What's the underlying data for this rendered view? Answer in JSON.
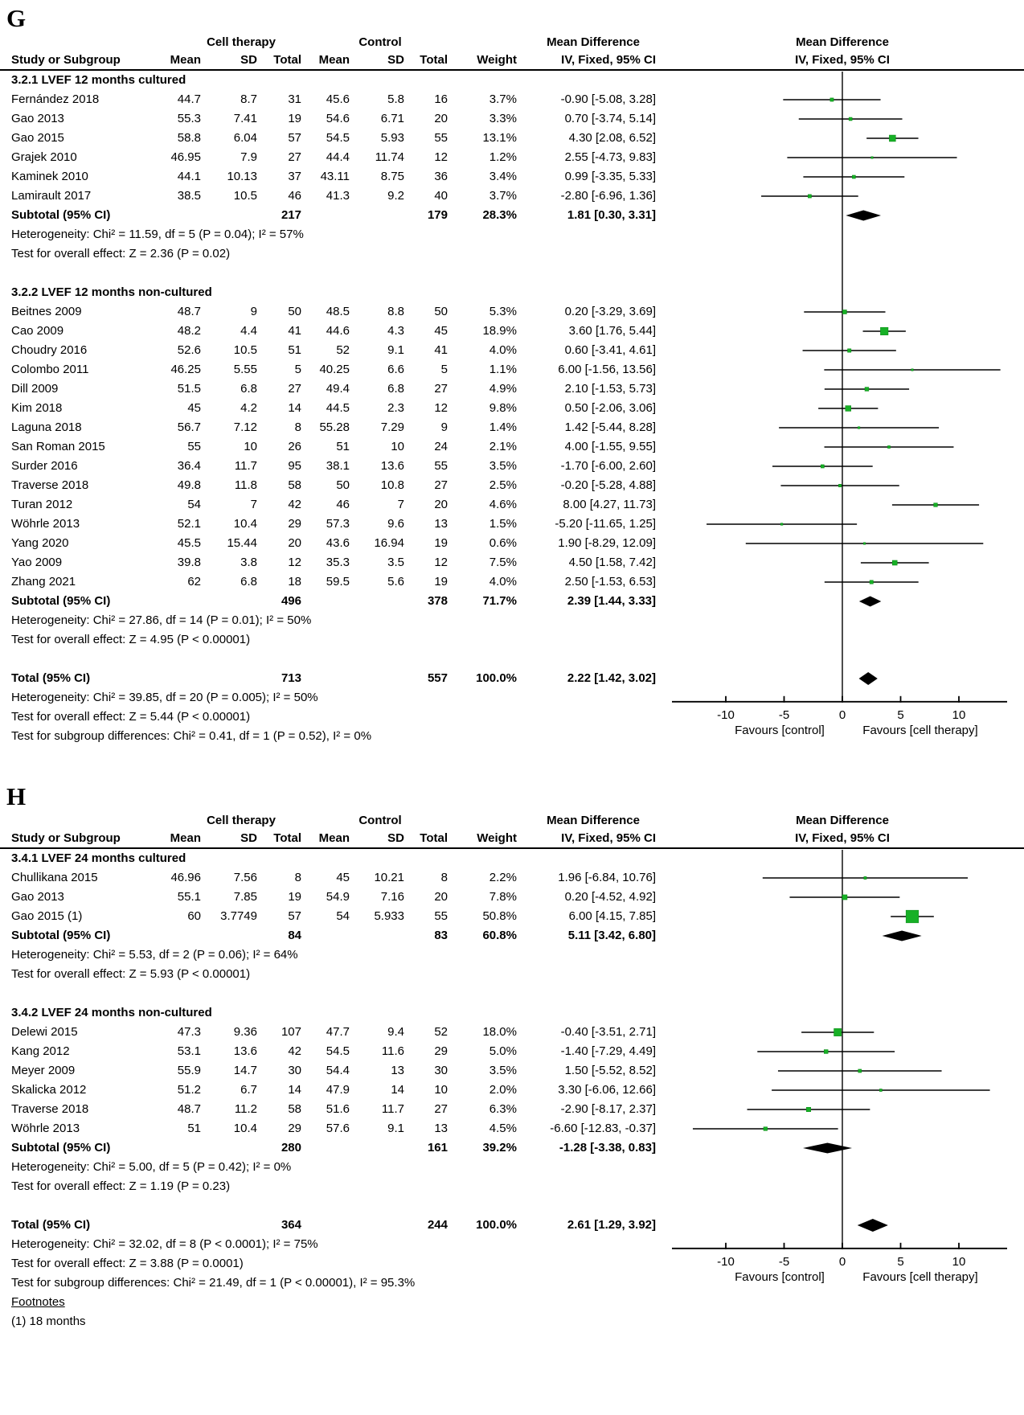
{
  "colors": {
    "marker_green": "#17B026",
    "marker_green_border": "#0B8A16",
    "diamond_black": "#000000",
    "zero_line_gray": "#4D4D4D",
    "axis_black": "#000000"
  },
  "header": {
    "group_cell": "Cell therapy",
    "group_control": "Control",
    "md": "Mean Difference",
    "study": "Study or Subgroup",
    "mean": "Mean",
    "sd": "SD",
    "total": "Total",
    "weight": "Weight",
    "iv": "IV, Fixed, 95% CI"
  },
  "axis": {
    "values": [
      -10,
      -5,
      0,
      5,
      10
    ],
    "tick_labels": [
      "-10",
      "-5",
      "0",
      "5",
      "10"
    ],
    "xmin": -14.6,
    "xmax": 14.1,
    "left_label": "Favours [control]",
    "right_label": "Favours [cell therapy]"
  },
  "chart_data": [
    {
      "type": "forest",
      "label": "G",
      "effect_measure": "Mean Difference, IV, Fixed, 95% CI",
      "rows": [
        {
          "t": "group",
          "label": "3.2.1 LVEF 12 months cultured"
        },
        {
          "t": "s",
          "name": "Fernández 2018",
          "c": [
            "44.7",
            "8.7",
            "31",
            "45.6",
            "5.8",
            "16",
            "3.7%",
            "-0.90 [-5.08, 3.28]"
          ],
          "md": -0.9,
          "lo": -5.08,
          "hi": 3.28,
          "wv": 3.7
        },
        {
          "t": "s",
          "name": "Gao 2013",
          "c": [
            "55.3",
            "7.41",
            "19",
            "54.6",
            "6.71",
            "20",
            "3.3%",
            "0.70 [-3.74, 5.14]"
          ],
          "md": 0.7,
          "lo": -3.74,
          "hi": 5.14,
          "wv": 3.3
        },
        {
          "t": "s",
          "name": "Gao 2015",
          "c": [
            "58.8",
            "6.04",
            "57",
            "54.5",
            "5.93",
            "55",
            "13.1%",
            "4.30 [2.08, 6.52]"
          ],
          "md": 4.3,
          "lo": 2.08,
          "hi": 6.52,
          "wv": 13.1
        },
        {
          "t": "s",
          "name": "Grajek 2010",
          "c": [
            "46.95",
            "7.9",
            "27",
            "44.4",
            "11.74",
            "12",
            "1.2%",
            "2.55 [-4.73, 9.83]"
          ],
          "md": 2.55,
          "lo": -4.73,
          "hi": 9.83,
          "wv": 1.2
        },
        {
          "t": "s",
          "name": "Kaminek 2010",
          "c": [
            "44.1",
            "10.13",
            "37",
            "43.11",
            "8.75",
            "36",
            "3.4%",
            "0.99 [-3.35, 5.33]"
          ],
          "md": 0.99,
          "lo": -3.35,
          "hi": 5.33,
          "wv": 3.4
        },
        {
          "t": "s",
          "name": "Lamirault 2017",
          "c": [
            "38.5",
            "10.5",
            "46",
            "41.3",
            "9.2",
            "40",
            "3.7%",
            "-2.80 [-6.96, 1.36]"
          ],
          "md": -2.8,
          "lo": -6.96,
          "hi": 1.36,
          "wv": 3.7
        },
        {
          "t": "sub",
          "name": "Subtotal (95% CI)",
          "c": [
            "",
            "",
            "217",
            "",
            "",
            "179",
            "28.3%",
            "1.81 [0.30, 3.31]"
          ],
          "md": 1.81,
          "lo": 0.3,
          "hi": 3.31
        },
        {
          "t": "txt",
          "text": "Heterogeneity: Chi² = 11.59, df = 5 (P = 0.04); I² = 57%"
        },
        {
          "t": "txt",
          "text": "Test for overall effect: Z = 2.36 (P = 0.02)"
        },
        {
          "t": "sp"
        },
        {
          "t": "group",
          "label": "3.2.2 LVEF 12 months non-cultured"
        },
        {
          "t": "s",
          "name": "Beitnes 2009",
          "c": [
            "48.7",
            "9",
            "50",
            "48.5",
            "8.8",
            "50",
            "5.3%",
            "0.20 [-3.29, 3.69]"
          ],
          "md": 0.2,
          "lo": -3.29,
          "hi": 3.69,
          "wv": 5.3
        },
        {
          "t": "s",
          "name": "Cao 2009",
          "c": [
            "48.2",
            "4.4",
            "41",
            "44.6",
            "4.3",
            "45",
            "18.9%",
            "3.60 [1.76, 5.44]"
          ],
          "md": 3.6,
          "lo": 1.76,
          "hi": 5.44,
          "wv": 18.9
        },
        {
          "t": "s",
          "name": "Choudry 2016",
          "c": [
            "52.6",
            "10.5",
            "51",
            "52",
            "9.1",
            "41",
            "4.0%",
            "0.60 [-3.41, 4.61]"
          ],
          "md": 0.6,
          "lo": -3.41,
          "hi": 4.61,
          "wv": 4.0
        },
        {
          "t": "s",
          "name": "Colombo 2011",
          "c": [
            "46.25",
            "5.55",
            "5",
            "40.25",
            "6.6",
            "5",
            "1.1%",
            "6.00 [-1.56, 13.56]"
          ],
          "md": 6.0,
          "lo": -1.56,
          "hi": 13.56,
          "wv": 1.1
        },
        {
          "t": "s",
          "name": "Dill 2009",
          "c": [
            "51.5",
            "6.8",
            "27",
            "49.4",
            "6.8",
            "27",
            "4.9%",
            "2.10 [-1.53, 5.73]"
          ],
          "md": 2.1,
          "lo": -1.53,
          "hi": 5.73,
          "wv": 4.9
        },
        {
          "t": "s",
          "name": "Kim 2018",
          "c": [
            "45",
            "4.2",
            "14",
            "44.5",
            "2.3",
            "12",
            "9.8%",
            "0.50 [-2.06, 3.06]"
          ],
          "md": 0.5,
          "lo": -2.06,
          "hi": 3.06,
          "wv": 9.8
        },
        {
          "t": "s",
          "name": "Laguna 2018",
          "c": [
            "56.7",
            "7.12",
            "8",
            "55.28",
            "7.29",
            "9",
            "1.4%",
            "1.42 [-5.44, 8.28]"
          ],
          "md": 1.42,
          "lo": -5.44,
          "hi": 8.28,
          "wv": 1.4
        },
        {
          "t": "s",
          "name": "San Roman 2015",
          "c": [
            "55",
            "10",
            "26",
            "51",
            "10",
            "24",
            "2.1%",
            "4.00 [-1.55, 9.55]"
          ],
          "md": 4.0,
          "lo": -1.55,
          "hi": 9.55,
          "wv": 2.1
        },
        {
          "t": "s",
          "name": "Surder 2016",
          "c": [
            "36.4",
            "11.7",
            "95",
            "38.1",
            "13.6",
            "55",
            "3.5%",
            "-1.70 [-6.00, 2.60]"
          ],
          "md": -1.7,
          "lo": -6.0,
          "hi": 2.6,
          "wv": 3.5
        },
        {
          "t": "s",
          "name": "Traverse 2018",
          "c": [
            "49.8",
            "11.8",
            "58",
            "50",
            "10.8",
            "27",
            "2.5%",
            "-0.20 [-5.28, 4.88]"
          ],
          "md": -0.2,
          "lo": -5.28,
          "hi": 4.88,
          "wv": 2.5
        },
        {
          "t": "s",
          "name": "Turan 2012",
          "c": [
            "54",
            "7",
            "42",
            "46",
            "7",
            "20",
            "4.6%",
            "8.00 [4.27, 11.73]"
          ],
          "md": 8.0,
          "lo": 4.27,
          "hi": 11.73,
          "wv": 4.6
        },
        {
          "t": "s",
          "name": "Wöhrle 2013",
          "c": [
            "52.1",
            "10.4",
            "29",
            "57.3",
            "9.6",
            "13",
            "1.5%",
            "-5.20 [-11.65, 1.25]"
          ],
          "md": -5.2,
          "lo": -11.65,
          "hi": 1.25,
          "wv": 1.5
        },
        {
          "t": "s",
          "name": "Yang 2020",
          "c": [
            "45.5",
            "15.44",
            "20",
            "43.6",
            "16.94",
            "19",
            "0.6%",
            "1.90 [-8.29, 12.09]"
          ],
          "md": 1.9,
          "lo": -8.29,
          "hi": 12.09,
          "wv": 0.6
        },
        {
          "t": "s",
          "name": "Yao 2009",
          "c": [
            "39.8",
            "3.8",
            "12",
            "35.3",
            "3.5",
            "12",
            "7.5%",
            "4.50 [1.58, 7.42]"
          ],
          "md": 4.5,
          "lo": 1.58,
          "hi": 7.42,
          "wv": 7.5
        },
        {
          "t": "s",
          "name": "Zhang 2021",
          "c": [
            "62",
            "6.8",
            "18",
            "59.5",
            "5.6",
            "19",
            "4.0%",
            "2.50 [-1.53, 6.53]"
          ],
          "md": 2.5,
          "lo": -1.53,
          "hi": 6.53,
          "wv": 4.0
        },
        {
          "t": "sub",
          "name": "Subtotal (95% CI)",
          "c": [
            "",
            "",
            "496",
            "",
            "",
            "378",
            "71.7%",
            "2.39 [1.44, 3.33]"
          ],
          "md": 2.39,
          "lo": 1.44,
          "hi": 3.33
        },
        {
          "t": "txt",
          "text": "Heterogeneity: Chi² = 27.86, df = 14 (P = 0.01); I² = 50%"
        },
        {
          "t": "txt",
          "text": "Test for overall effect: Z = 4.95 (P < 0.00001)"
        },
        {
          "t": "sp"
        },
        {
          "t": "tot",
          "name": "Total (95% CI)",
          "c": [
            "",
            "",
            "713",
            "",
            "",
            "557",
            "100.0%",
            "2.22 [1.42, 3.02]"
          ],
          "md": 2.22,
          "lo": 1.42,
          "hi": 3.02
        },
        {
          "t": "txt",
          "text": "Heterogeneity: Chi² = 39.85, df = 20 (P = 0.005); I² = 50%"
        },
        {
          "t": "txt",
          "text": "Test for overall effect: Z = 5.44 (P < 0.00001)"
        },
        {
          "t": "txt",
          "text": "Test for subgroup differences: Chi² = 0.41, df = 1 (P = 0.52), I² = 0%"
        }
      ]
    },
    {
      "type": "forest",
      "label": "H",
      "effect_measure": "Mean Difference, IV, Fixed, 95% CI",
      "rows": [
        {
          "t": "group",
          "label": "3.4.1 LVEF 24 months cultured"
        },
        {
          "t": "s",
          "name": "Chullikana 2015",
          "c": [
            "46.96",
            "7.56",
            "8",
            "45",
            "10.21",
            "8",
            "2.2%",
            "1.96 [-6.84, 10.76]"
          ],
          "md": 1.96,
          "lo": -6.84,
          "hi": 10.76,
          "wv": 2.2
        },
        {
          "t": "s",
          "name": "Gao 2013",
          "c": [
            "55.1",
            "7.85",
            "19",
            "54.9",
            "7.16",
            "20",
            "7.8%",
            "0.20 [-4.52, 4.92]"
          ],
          "md": 0.2,
          "lo": -4.52,
          "hi": 4.92,
          "wv": 7.8
        },
        {
          "t": "s",
          "name": "Gao 2015 (1)",
          "c": [
            "60",
            "3.7749",
            "57",
            "54",
            "5.933",
            "55",
            "50.8%",
            "6.00 [4.15, 7.85]"
          ],
          "md": 6.0,
          "lo": 4.15,
          "hi": 7.85,
          "wv": 50.8
        },
        {
          "t": "sub",
          "name": "Subtotal (95% CI)",
          "c": [
            "",
            "",
            "84",
            "",
            "",
            "83",
            "60.8%",
            "5.11 [3.42, 6.80]"
          ],
          "md": 5.11,
          "lo": 3.42,
          "hi": 6.8
        },
        {
          "t": "txt",
          "text": "Heterogeneity: Chi² = 5.53, df = 2 (P = 0.06); I² = 64%"
        },
        {
          "t": "txt",
          "text": "Test for overall effect: Z = 5.93 (P < 0.00001)"
        },
        {
          "t": "sp"
        },
        {
          "t": "group",
          "label": "3.4.2 LVEF 24 months non-cultured"
        },
        {
          "t": "s",
          "name": "Delewi 2015",
          "c": [
            "47.3",
            "9.36",
            "107",
            "47.7",
            "9.4",
            "52",
            "18.0%",
            "-0.40 [-3.51, 2.71]"
          ],
          "md": -0.4,
          "lo": -3.51,
          "hi": 2.71,
          "wv": 18.0
        },
        {
          "t": "s",
          "name": "Kang 2012",
          "c": [
            "53.1",
            "13.6",
            "42",
            "54.5",
            "11.6",
            "29",
            "5.0%",
            "-1.40 [-7.29, 4.49]"
          ],
          "md": -1.4,
          "lo": -7.29,
          "hi": 4.49,
          "wv": 5.0
        },
        {
          "t": "s",
          "name": "Meyer 2009",
          "c": [
            "55.9",
            "14.7",
            "30",
            "54.4",
            "13",
            "30",
            "3.5%",
            "1.50 [-5.52, 8.52]"
          ],
          "md": 1.5,
          "lo": -5.52,
          "hi": 8.52,
          "wv": 3.5
        },
        {
          "t": "s",
          "name": "Skalicka 2012",
          "c": [
            "51.2",
            "6.7",
            "14",
            "47.9",
            "14",
            "10",
            "2.0%",
            "3.30 [-6.06, 12.66]"
          ],
          "md": 3.3,
          "lo": -6.06,
          "hi": 12.66,
          "wv": 2.0
        },
        {
          "t": "s",
          "name": "Traverse 2018",
          "c": [
            "48.7",
            "11.2",
            "58",
            "51.6",
            "11.7",
            "27",
            "6.3%",
            "-2.90 [-8.17, 2.37]"
          ],
          "md": -2.9,
          "lo": -8.17,
          "hi": 2.37,
          "wv": 6.3
        },
        {
          "t": "s",
          "name": "Wöhrle 2013",
          "c": [
            "51",
            "10.4",
            "29",
            "57.6",
            "9.1",
            "13",
            "4.5%",
            "-6.60 [-12.83, -0.37]"
          ],
          "md": -6.6,
          "lo": -12.83,
          "hi": -0.37,
          "wv": 4.5
        },
        {
          "t": "sub",
          "name": "Subtotal (95% CI)",
          "c": [
            "",
            "",
            "280",
            "",
            "",
            "161",
            "39.2%",
            "-1.28 [-3.38, 0.83]"
          ],
          "md": -1.28,
          "lo": -3.38,
          "hi": 0.83
        },
        {
          "t": "txt",
          "text": "Heterogeneity: Chi² = 5.00, df = 5 (P = 0.42); I² = 0%"
        },
        {
          "t": "txt",
          "text": "Test for overall effect: Z = 1.19 (P = 0.23)"
        },
        {
          "t": "sp"
        },
        {
          "t": "tot",
          "name": "Total (95% CI)",
          "c": [
            "",
            "",
            "364",
            "",
            "",
            "244",
            "100.0%",
            "2.61 [1.29, 3.92]"
          ],
          "md": 2.61,
          "lo": 1.29,
          "hi": 3.92
        },
        {
          "t": "txt",
          "text": "Heterogeneity: Chi² = 32.02, df = 8 (P < 0.0001); I² = 75%"
        },
        {
          "t": "txt",
          "text": "Test for overall effect: Z = 3.88 (P = 0.0001)"
        },
        {
          "t": "txt",
          "text": "Test for subgroup differences: Chi² = 21.49, df = 1 (P < 0.00001), I² = 95.3%"
        },
        {
          "t": "fnt",
          "text": "Footnotes"
        },
        {
          "t": "fn",
          "text": "(1) 18 months"
        }
      ]
    }
  ]
}
